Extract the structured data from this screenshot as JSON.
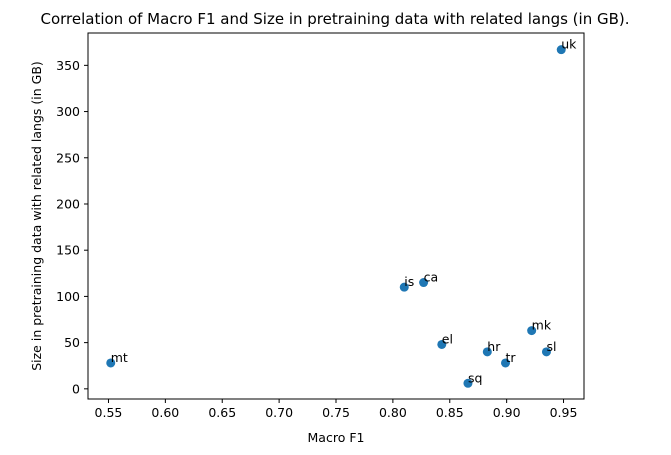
{
  "chart_data": {
    "type": "scatter",
    "title": "Correlation of Macro F1 and Size in pretraining data with related langs (in GB).",
    "xlabel": "Macro F1",
    "ylabel": "Size in pretraining data with related langs (in GB)",
    "xlim": [
      0.532,
      0.968
    ],
    "ylim": [
      -11,
      385
    ],
    "xticks": [
      0.55,
      0.6,
      0.65,
      0.7,
      0.75,
      0.8,
      0.85,
      0.9,
      0.95
    ],
    "xtick_labels": [
      "0.55",
      "0.60",
      "0.65",
      "0.70",
      "0.75",
      "0.80",
      "0.85",
      "0.90",
      "0.95"
    ],
    "yticks": [
      0,
      50,
      100,
      150,
      200,
      250,
      300,
      350
    ],
    "ytick_labels": [
      "0",
      "50",
      "100",
      "150",
      "200",
      "250",
      "300",
      "350"
    ],
    "grid": false,
    "marker_color": "#1f77b4",
    "points": [
      {
        "label": "mt",
        "x": 0.552,
        "y": 28
      },
      {
        "label": "is",
        "x": 0.81,
        "y": 110
      },
      {
        "label": "ca",
        "x": 0.827,
        "y": 115
      },
      {
        "label": "el",
        "x": 0.843,
        "y": 48
      },
      {
        "label": "sq",
        "x": 0.866,
        "y": 6
      },
      {
        "label": "hr",
        "x": 0.883,
        "y": 40
      },
      {
        "label": "tr",
        "x": 0.899,
        "y": 28
      },
      {
        "label": "mk",
        "x": 0.922,
        "y": 63
      },
      {
        "label": "sl",
        "x": 0.935,
        "y": 40
      },
      {
        "label": "uk",
        "x": 0.948,
        "y": 367
      }
    ]
  }
}
